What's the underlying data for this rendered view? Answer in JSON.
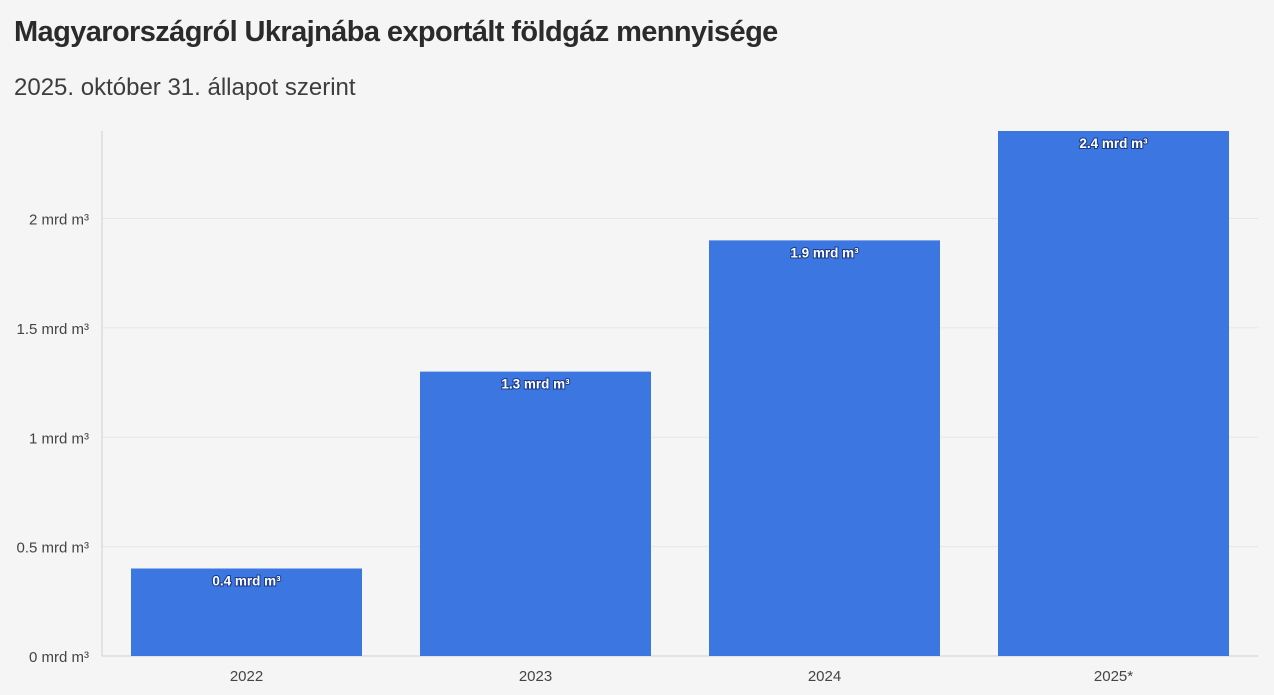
{
  "chart_data": {
    "type": "bar",
    "title": "Magyarországról Ukrajnába exportált földgáz mennyisége",
    "subtitle": "2025. október 31. állapot szerint",
    "xlabel": "",
    "ylabel": "",
    "categories": [
      "2022",
      "2023",
      "2024",
      "2025*"
    ],
    "values": [
      0.4,
      1.3,
      1.9,
      2.4
    ],
    "value_labels": [
      "0.4 mrd m³",
      "1.3 mrd m³",
      "1.9 mrd m³",
      "2.4 mrd m³"
    ],
    "yticks": [
      0,
      0.5,
      1,
      1.5,
      2
    ],
    "ytick_labels": [
      "0 mrd m³",
      "0.5 mrd m³",
      "1 mrd m³",
      "1.5 mrd m³",
      "2 mrd m³"
    ],
    "ylim": [
      0,
      2.4
    ],
    "grid": true,
    "legend": "none",
    "colors": {
      "bar": "#3b76e1",
      "grid": "#e6e6e6",
      "axis": "#d0d0d0",
      "background": "#f5f5f5"
    }
  }
}
